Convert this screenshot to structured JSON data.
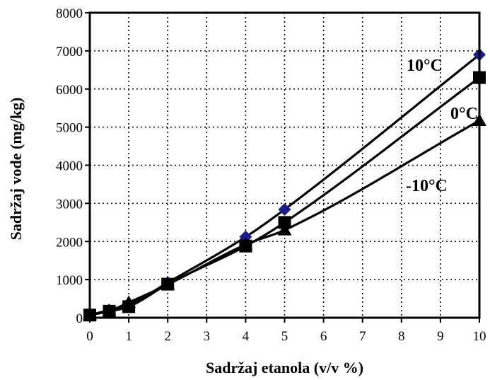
{
  "chart_data": {
    "type": "scatter",
    "title": "",
    "xlabel": "Sadržaj etanola (v/v %)",
    "ylabel": "Sadržaj vode (mg/kg)",
    "xlim": [
      0,
      10
    ],
    "ylim": [
      0,
      8000
    ],
    "xticks": [
      0,
      1,
      2,
      3,
      4,
      5,
      6,
      7,
      8,
      9,
      10
    ],
    "yticks": [
      0,
      1000,
      2000,
      3000,
      4000,
      5000,
      6000,
      7000,
      8000
    ],
    "grid": true,
    "grid_style": "dotted",
    "legend": "none",
    "series": [
      {
        "name": "10°C",
        "marker": "diamond",
        "color": "#1c1c8c",
        "x": [
          0,
          0.5,
          1,
          2,
          4,
          5,
          10
        ],
        "y": [
          70,
          200,
          330,
          920,
          2120,
          2840,
          6900
        ]
      },
      {
        "name": "0°C",
        "marker": "square",
        "color": "#000000",
        "x": [
          0,
          0.5,
          1,
          2,
          4,
          5,
          10
        ],
        "y": [
          70,
          170,
          290,
          880,
          1880,
          2500,
          6300
        ]
      },
      {
        "name": "-10°C",
        "marker": "triangle",
        "color": "#000000",
        "x": [
          0,
          0.5,
          1,
          2,
          4,
          5,
          10
        ],
        "y": [
          70,
          180,
          400,
          870,
          1920,
          2300,
          5170
        ]
      }
    ]
  }
}
